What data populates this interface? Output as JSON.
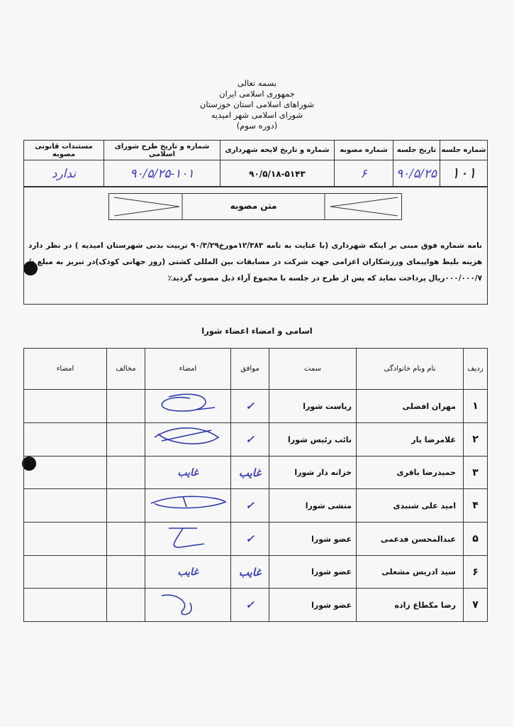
{
  "header": {
    "lines": [
      "بسمه تعالی",
      "جمهوری اسلامی ایران",
      "شوراهای اسلامی استان خوزستان",
      "شورای اسلامی شهر امیدیه",
      "(دوره سوم)"
    ]
  },
  "meta_table": {
    "headers": [
      "شماره جلسه",
      "تاریخ جلسه",
      "شماره مصوبه",
      "شماره و تاریخ لایحه شهرداری",
      "شماره و تاریخ طرح شورای اسلامی",
      "مستندات قانونی مصوبه"
    ],
    "values": [
      "۱۰۱",
      "۹۰/۵/۲۵",
      "۶",
      "۹۰/۵/۱۸-۵۱۴۳",
      "۹۰/۵/۲۵-۱۰۱",
      "ندارد"
    ]
  },
  "resolution": {
    "title": "متن مصوبه",
    "text": "نامه شماره فوق مبنی بر اینکه شهرداری (با عنایت به نامه ۱۲/۳۸۳مورخ۹۰/۳/۲۹ تربیت بدنی شهرستان امیدیه ) در نظر دارد هزینه بلیط هواپیمای ورزشکاران اعزامی جهت شرکت در مسابقات بین المللی کشتی (روز جهانی کودک)در تبریز به مبلغ -/۰۰۰/۰۰۰/۷ریال پرداخت نماید که پس از طرح در جلسه با مجموع آراء ذیل مصوب گردید٪"
  },
  "members": {
    "title": "اسامی و امضاء اعضاء شورا",
    "headers": [
      "ردیف",
      "نام ونام خانوادگی",
      "سمت",
      "موافق",
      "امضاء",
      "مخالف",
      "امضاء"
    ],
    "rows": [
      {
        "n": "۱",
        "name": "مهران افضلی",
        "role": "ریاست شورا",
        "vote": "✓"
      },
      {
        "n": "۲",
        "name": "غلامرضا یار",
        "role": "نائب رئیس شورا",
        "vote": "✓"
      },
      {
        "n": "۳",
        "name": "حمیدرضا باقری",
        "role": "خزانه دار شورا",
        "vote": "غایب",
        "sig": "غایب"
      },
      {
        "n": "۴",
        "name": "امید علی شنبدی",
        "role": "منشی شورا",
        "vote": "✓"
      },
      {
        "n": "۵",
        "name": "عبدالمحسن فدعمی",
        "role": "عضو شورا",
        "vote": "✓"
      },
      {
        "n": "۶",
        "name": "سید ادریس مشعلی",
        "role": "عضو شورا",
        "vote": "غایب",
        "sig": "غایب"
      },
      {
        "n": "۷",
        "name": "رضا مکطاع زاده",
        "role": "عضو شورا",
        "vote": "✓"
      }
    ]
  }
}
